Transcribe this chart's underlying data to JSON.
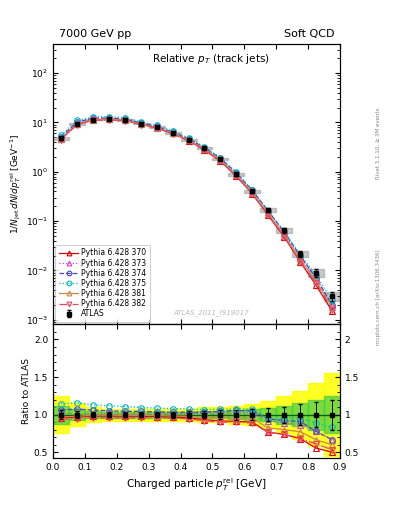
{
  "title_left": "7000 GeV pp",
  "title_right": "Soft QCD",
  "plot_title": "Relative $p_T$ (track jets)",
  "xlabel": "Charged particle $p_T^{\\rm rel}$ [GeV]",
  "ylabel_main": "$1/N_{\\rm jet}\\,dN/dp_T^{\\rm rel}\\;[{\\rm GeV}^{-1}]$",
  "ylabel_ratio": "Ratio to ATLAS",
  "right_label": "mcplots.cern.ch [arXiv:1306.3436]",
  "right_label2": "Rivet 3.1.10, ≥ 3M events",
  "watermark": "ATLAS_2011_I919017",
  "xlim": [
    0.0,
    0.9
  ],
  "ylim_main": [
    0.0008,
    400
  ],
  "ylim_ratio": [
    0.42,
    2.2
  ],
  "x_data": [
    0.025,
    0.075,
    0.125,
    0.175,
    0.225,
    0.275,
    0.325,
    0.375,
    0.425,
    0.475,
    0.525,
    0.575,
    0.625,
    0.675,
    0.725,
    0.775,
    0.825,
    0.875
  ],
  "atlas_y": [
    4.8,
    9.5,
    11.5,
    11.8,
    11.2,
    9.5,
    8.0,
    6.2,
    4.5,
    3.0,
    1.8,
    0.9,
    0.4,
    0.17,
    0.065,
    0.022,
    0.009,
    0.003
  ],
  "atlas_yerr": [
    0.3,
    0.4,
    0.4,
    0.4,
    0.4,
    0.35,
    0.3,
    0.25,
    0.2,
    0.15,
    0.1,
    0.06,
    0.03,
    0.015,
    0.007,
    0.003,
    0.0015,
    0.0006
  ],
  "py370_y": [
    4.6,
    9.2,
    11.3,
    11.6,
    11.0,
    9.3,
    7.8,
    6.0,
    4.3,
    2.8,
    1.65,
    0.82,
    0.36,
    0.13,
    0.048,
    0.015,
    0.005,
    0.0015
  ],
  "py373_y": [
    4.9,
    9.6,
    11.6,
    11.9,
    11.3,
    9.6,
    8.1,
    6.25,
    4.55,
    3.05,
    1.82,
    0.92,
    0.41,
    0.155,
    0.058,
    0.019,
    0.007,
    0.002
  ],
  "py374_y": [
    5.1,
    10.2,
    12.2,
    12.4,
    11.7,
    9.9,
    8.3,
    6.4,
    4.65,
    3.1,
    1.88,
    0.95,
    0.42,
    0.16,
    0.06,
    0.02,
    0.007,
    0.002
  ],
  "py375_y": [
    5.5,
    11.0,
    13.0,
    13.2,
    12.4,
    10.4,
    8.7,
    6.7,
    4.85,
    3.2,
    1.93,
    0.97,
    0.43,
    0.16,
    0.062,
    0.021,
    0.008,
    0.0025
  ],
  "py381_y": [
    4.65,
    9.3,
    11.4,
    11.7,
    11.1,
    9.4,
    7.9,
    6.1,
    4.4,
    2.9,
    1.72,
    0.86,
    0.38,
    0.14,
    0.052,
    0.017,
    0.006,
    0.0018
  ],
  "py382_y": [
    4.5,
    9.0,
    11.0,
    11.3,
    10.7,
    9.1,
    7.65,
    5.9,
    4.25,
    2.75,
    1.62,
    0.81,
    0.355,
    0.13,
    0.048,
    0.015,
    0.0055,
    0.0016
  ],
  "green_band_ratio": [
    0.12,
    0.07,
    0.05,
    0.04,
    0.04,
    0.04,
    0.04,
    0.04,
    0.04,
    0.05,
    0.05,
    0.06,
    0.07,
    0.09,
    0.12,
    0.15,
    0.2,
    0.25
  ],
  "yellow_band_ratio": [
    0.25,
    0.15,
    0.1,
    0.08,
    0.08,
    0.08,
    0.08,
    0.08,
    0.08,
    0.1,
    0.1,
    0.12,
    0.14,
    0.18,
    0.25,
    0.32,
    0.42,
    0.55
  ],
  "colors": {
    "atlas": "#000000",
    "py370": "#dd0000",
    "py373": "#cc44cc",
    "py374": "#4444cc",
    "py375": "#00bbbb",
    "py381": "#cc8844",
    "py382": "#ee4466"
  }
}
